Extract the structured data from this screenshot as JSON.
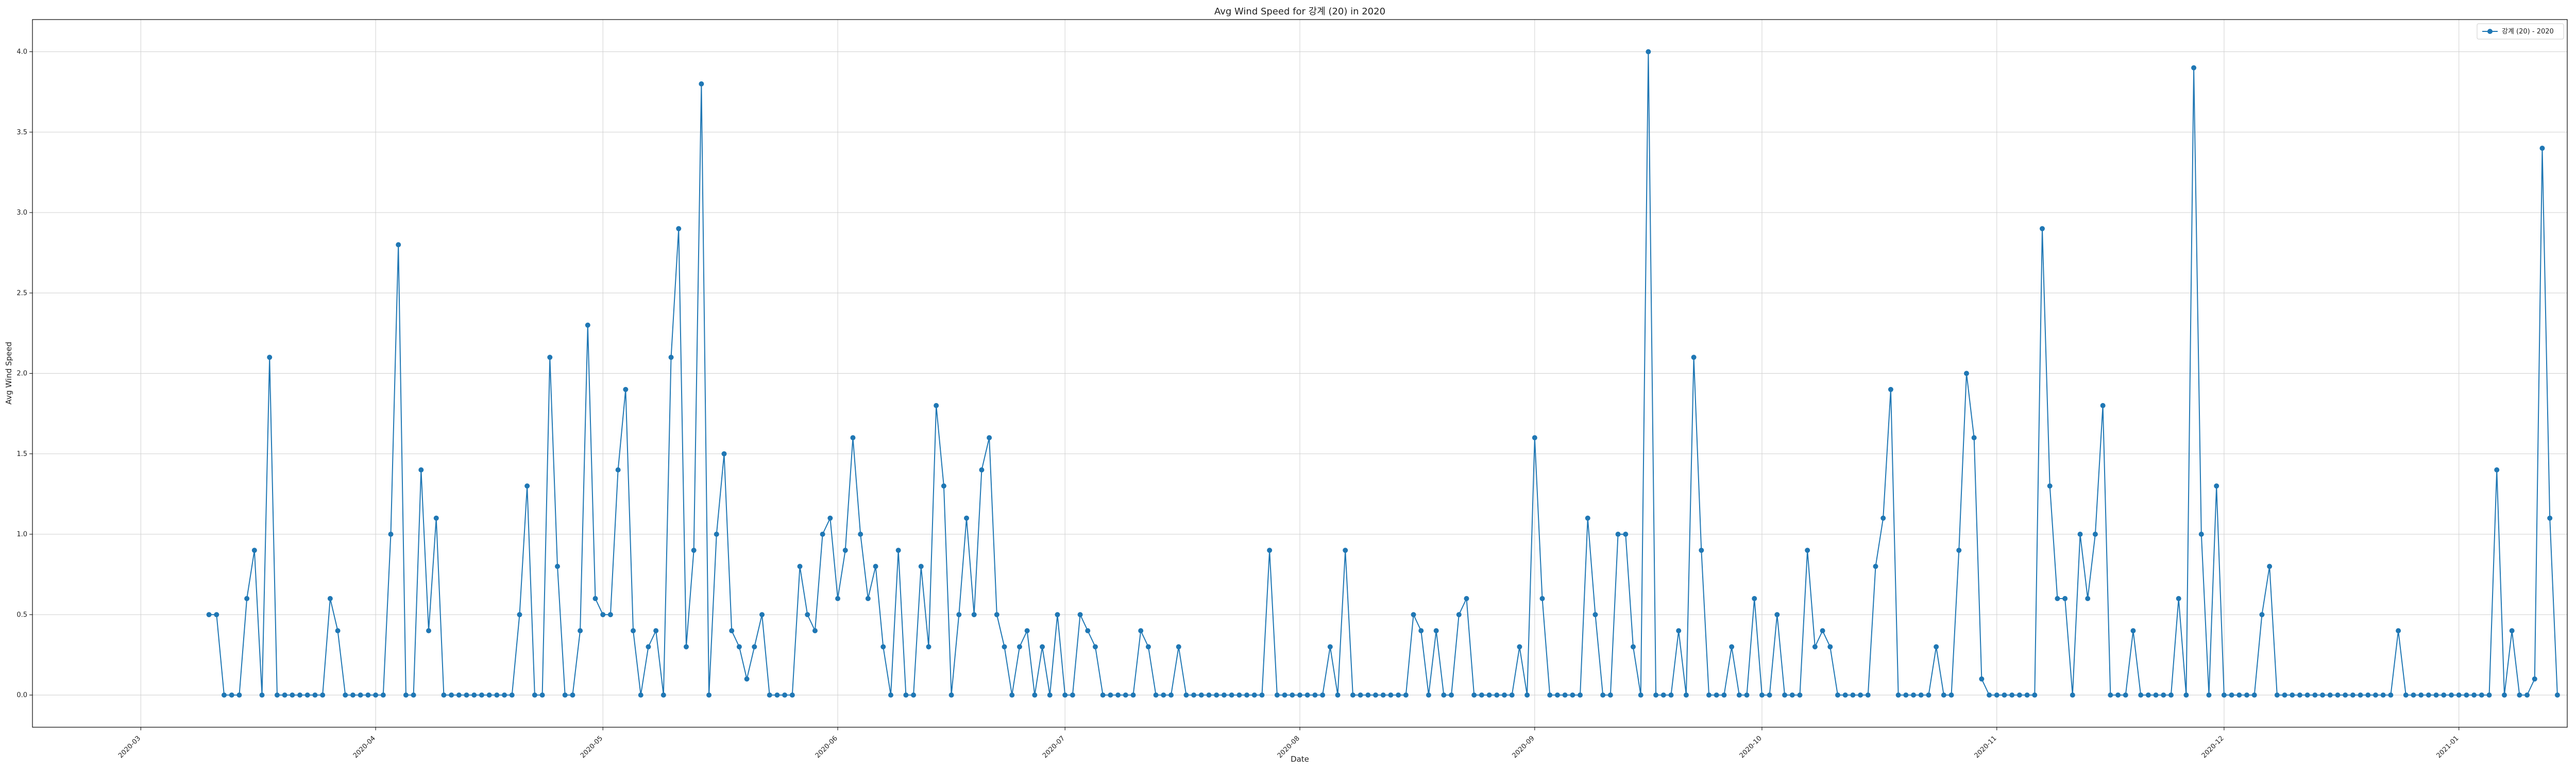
{
  "chart_data": {
    "type": "line",
    "title": "Avg Wind Speed for 강계 (20) in 2020",
    "xlabel": "Date",
    "ylabel": "Avg Wind Speed",
    "x_start": "2020-03-10",
    "ylim": [
      -0.2,
      4.2
    ],
    "y_ticks": [
      "0.0",
      "0.5",
      "1.0",
      "1.5",
      "2.0",
      "2.5",
      "3.0",
      "3.5",
      "4.0"
    ],
    "x_ticks": [
      "2020-03",
      "2020-04",
      "2020-05",
      "2020-06",
      "2020-07",
      "2020-08",
      "2020-09",
      "2020-10",
      "2020-11",
      "2020-12",
      "2021-01"
    ],
    "grid": true,
    "legend_position": "top-right",
    "series": [
      {
        "name": "강계 (20) - 2020",
        "color": "#1f77b4",
        "marker": "circle",
        "values": [
          0.5,
          0.5,
          0,
          0,
          0,
          0.6,
          0.9,
          0,
          2.1,
          0,
          0,
          0,
          0,
          0,
          0,
          0,
          0.6,
          0.4,
          0,
          0,
          0,
          0,
          0,
          0,
          1.0,
          2.8,
          0,
          0,
          1.4,
          0.4,
          1.1,
          0,
          0,
          0,
          0,
          0,
          0,
          0,
          0,
          0,
          0,
          0.5,
          1.3,
          0,
          0,
          2.1,
          0.8,
          0,
          0,
          0.4,
          2.3,
          0.6,
          0.5,
          0.5,
          1.4,
          1.9,
          0.4,
          0,
          0.3,
          0.4,
          0,
          2.1,
          2.9,
          0.3,
          0.9,
          3.8,
          0,
          1.0,
          1.5,
          0.4,
          0.3,
          0.1,
          0.3,
          0.5,
          0,
          0,
          0,
          0,
          0.8,
          0.5,
          0.4,
          1.0,
          1.1,
          0.6,
          0.9,
          1.6,
          1.0,
          0.6,
          0.8,
          0.3,
          0,
          0.9,
          0,
          0,
          0.8,
          0.3,
          1.8,
          1.3,
          0,
          0.5,
          1.1,
          0.5,
          1.4,
          1.6,
          0.5,
          0.3,
          0,
          0.3,
          0.4,
          0,
          0.3,
          0,
          0.5,
          0,
          0,
          0.5,
          0.4,
          0.3,
          0,
          0,
          0,
          0,
          0,
          0.4,
          0.3,
          0,
          0,
          0,
          0.3,
          0,
          0,
          0,
          0,
          0,
          0,
          0,
          0,
          0,
          0,
          0,
          0.9,
          0,
          0,
          0,
          0,
          0,
          0,
          0,
          0.3,
          0,
          0.9,
          0,
          0,
          0,
          0,
          0,
          0,
          0,
          0,
          0.5,
          0.4,
          0,
          0.4,
          0,
          0,
          0.5,
          0.6,
          0,
          0,
          0,
          0,
          0,
          0,
          0.3,
          0,
          1.6,
          0.6,
          0,
          0,
          0,
          0,
          0,
          1.1,
          0.5,
          0,
          0,
          1.0,
          1.0,
          0.3,
          0,
          4.0,
          0,
          0,
          0,
          0.4,
          0,
          2.1,
          0.9,
          0,
          0,
          0,
          0.3,
          0,
          0,
          0.6,
          0,
          0,
          0.5,
          0,
          0,
          0,
          0.9,
          0.3,
          0.4,
          0.3,
          0,
          0,
          0,
          0,
          0,
          0.8,
          1.1,
          1.9,
          0,
          0,
          0,
          0,
          0,
          0.3,
          0,
          0,
          0.9,
          2.0,
          1.6,
          0.1,
          0,
          0,
          0,
          0,
          0,
          0,
          0,
          2.9,
          1.3,
          0.6,
          0.6,
          0,
          1.0,
          0.6,
          1.0,
          1.8,
          0,
          0,
          0,
          0.4,
          0,
          0,
          0,
          0,
          0,
          0.6,
          0,
          3.9,
          1.0,
          0,
          1.3,
          0,
          0,
          0,
          0,
          0,
          0.5,
          0.8,
          0,
          0,
          0,
          0,
          0,
          0,
          0,
          0,
          0,
          0,
          0,
          0,
          0,
          0,
          0,
          0,
          0.4,
          0,
          0,
          0,
          0,
          0,
          0,
          0,
          0,
          0,
          0,
          0,
          0,
          1.4,
          0,
          0.4,
          0,
          0,
          0.1,
          3.4,
          1.1,
          0
        ]
      }
    ]
  }
}
